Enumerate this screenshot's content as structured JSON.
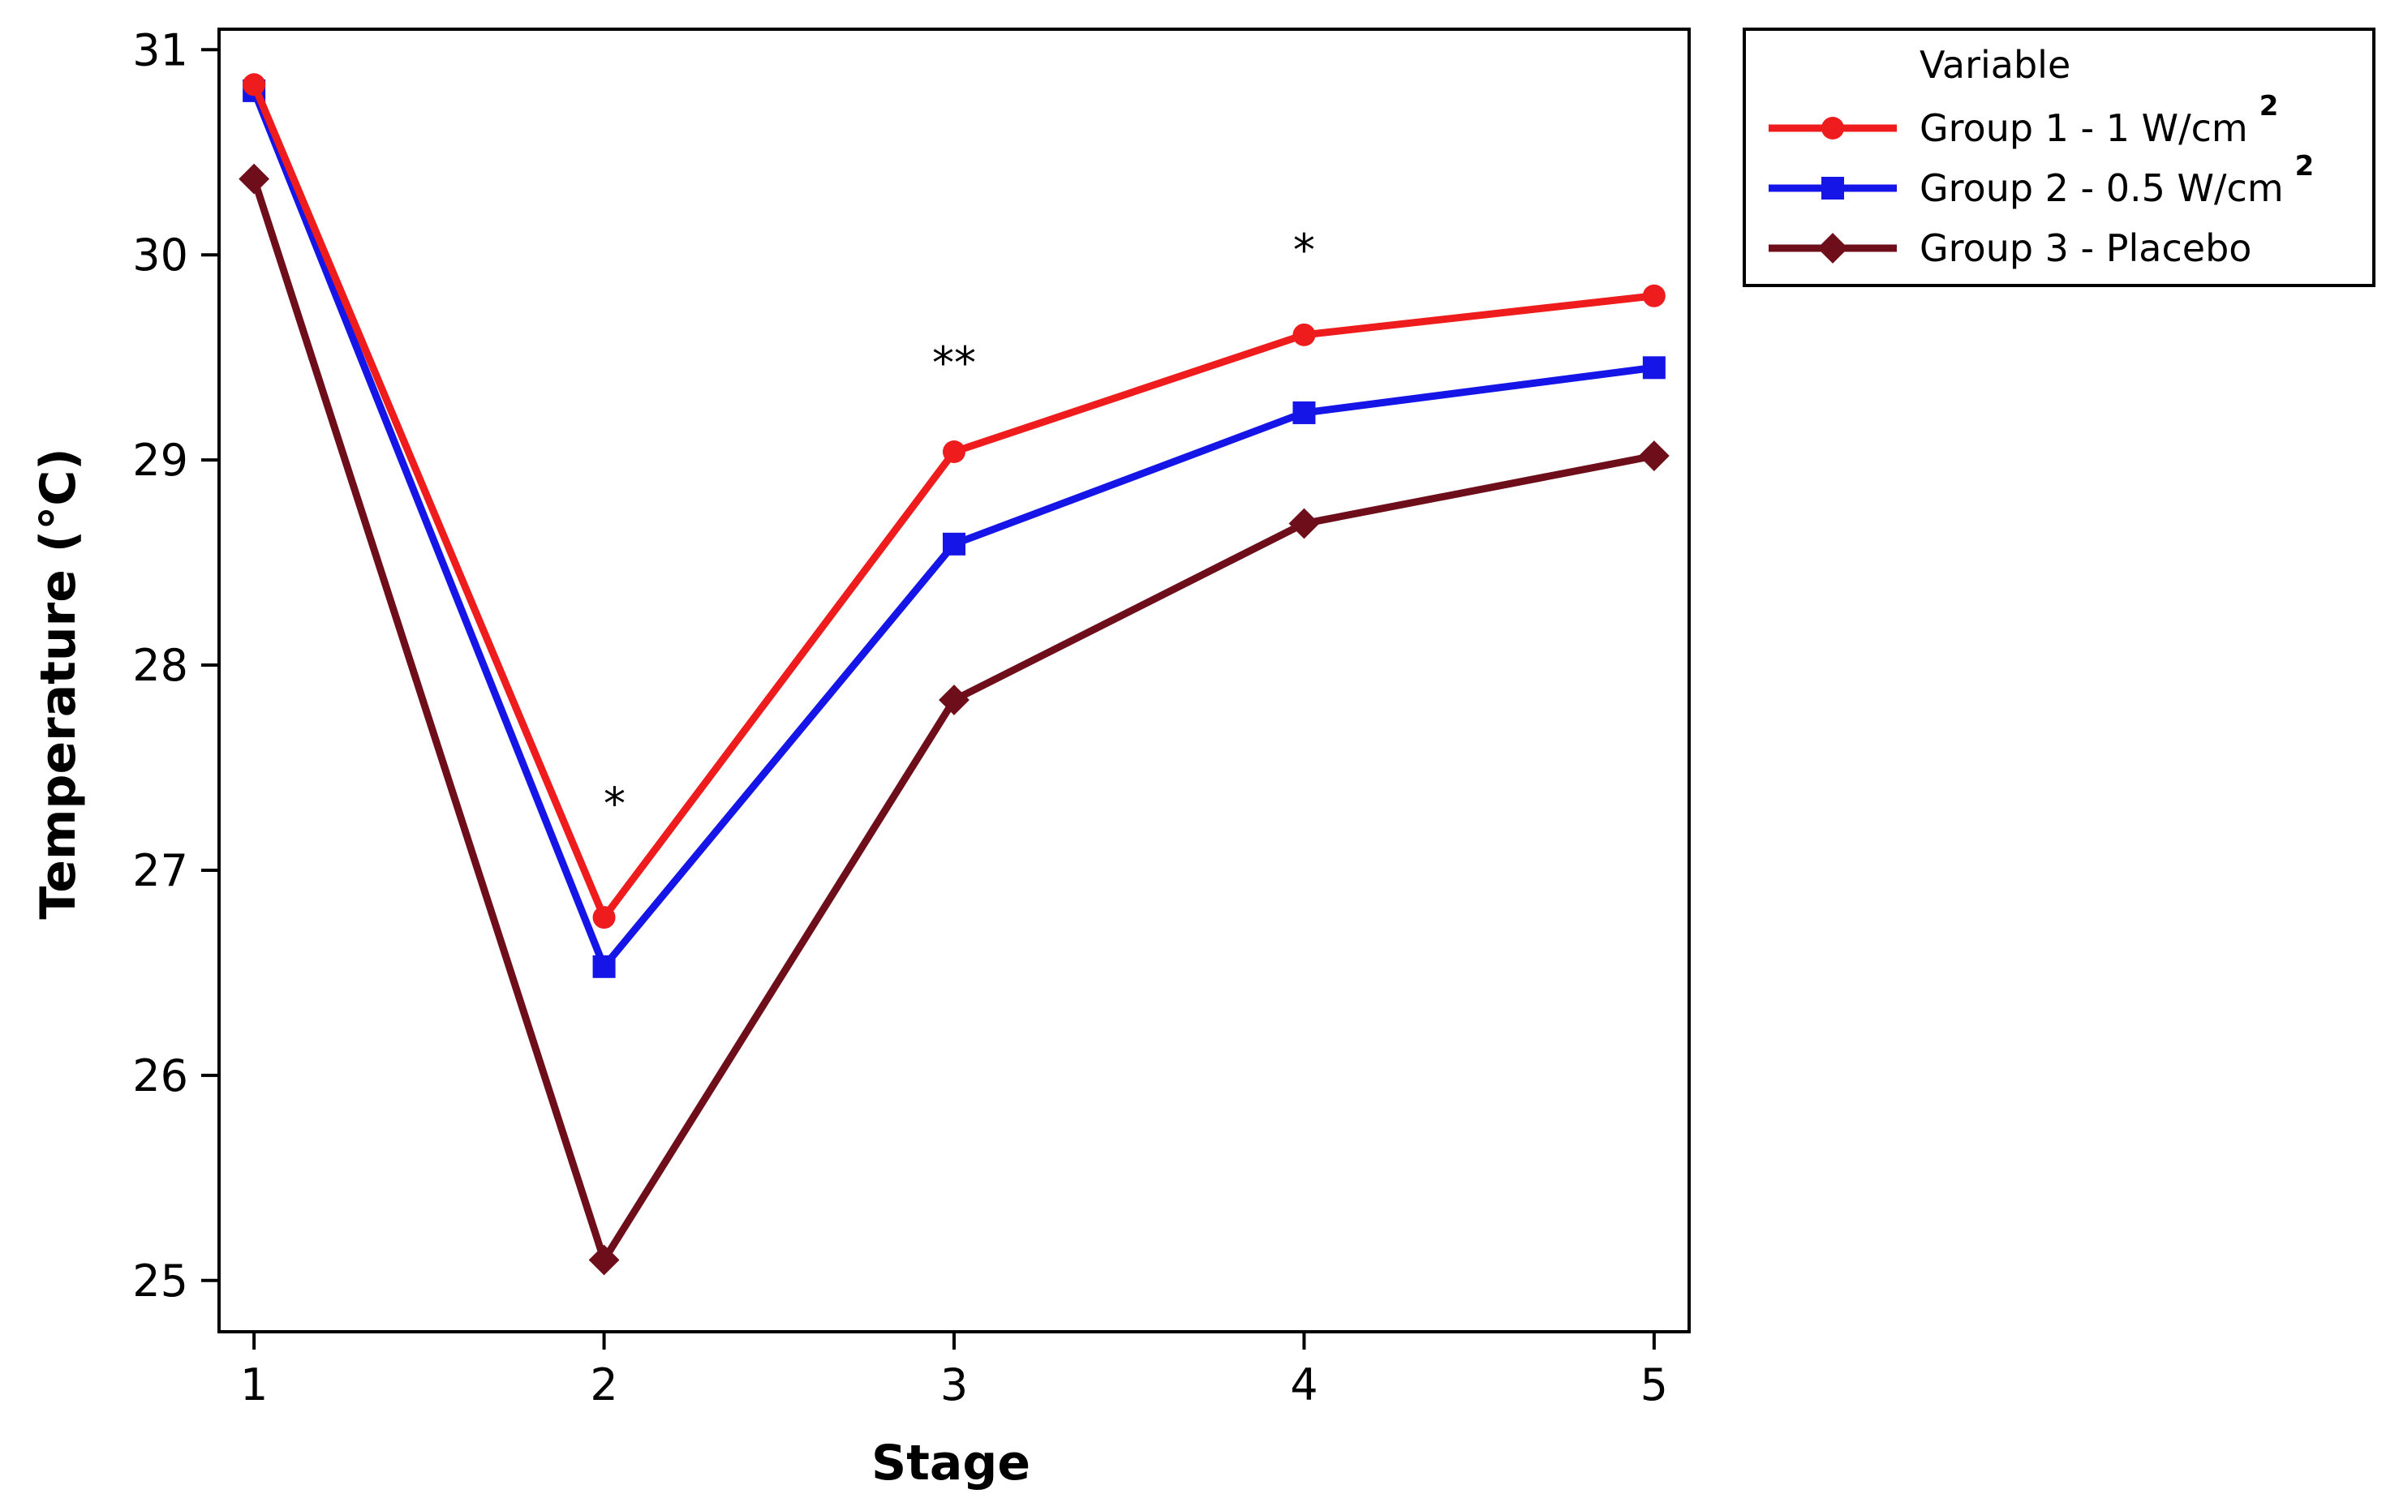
{
  "chart_data": {
    "type": "line",
    "title": "",
    "xlabel": "Stage",
    "ylabel": "Temperature (°C)",
    "x": [
      1,
      2,
      3,
      4,
      5
    ],
    "xticks": [
      "1",
      "2",
      "3",
      "4",
      "5"
    ],
    "yticks": [
      "25",
      "26",
      "27",
      "28",
      "29",
      "30",
      "31"
    ],
    "xlim": [
      0.9,
      5.1
    ],
    "ylim": [
      24.75,
      31.1
    ],
    "grid": false,
    "legend": {
      "title": "Variable",
      "placement": "outside-top-right"
    },
    "series": [
      {
        "name": "Group 1 - 1 W/cm",
        "superscript": "2",
        "color": "#ee1c1c",
        "marker": "circle",
        "values": [
          30.83,
          26.77,
          29.04,
          29.61,
          29.8
        ]
      },
      {
        "name": "Group 2 - 0.5 W/cm",
        "superscript": "2",
        "color": "#1515e8",
        "marker": "square",
        "values": [
          30.8,
          26.53,
          28.59,
          29.23,
          29.45
        ]
      },
      {
        "name": "Group 3 - Placebo",
        "superscript": "",
        "color": "#6e0e1a",
        "marker": "diamond",
        "values": [
          30.37,
          25.1,
          27.83,
          28.69,
          29.02
        ]
      }
    ],
    "annotations": [
      {
        "text": "*",
        "x": 2.03,
        "y": 27.25
      },
      {
        "text": "**",
        "x": 3.0,
        "y": 29.4
      },
      {
        "text": "*",
        "x": 4.0,
        "y": 29.95
      }
    ]
  }
}
